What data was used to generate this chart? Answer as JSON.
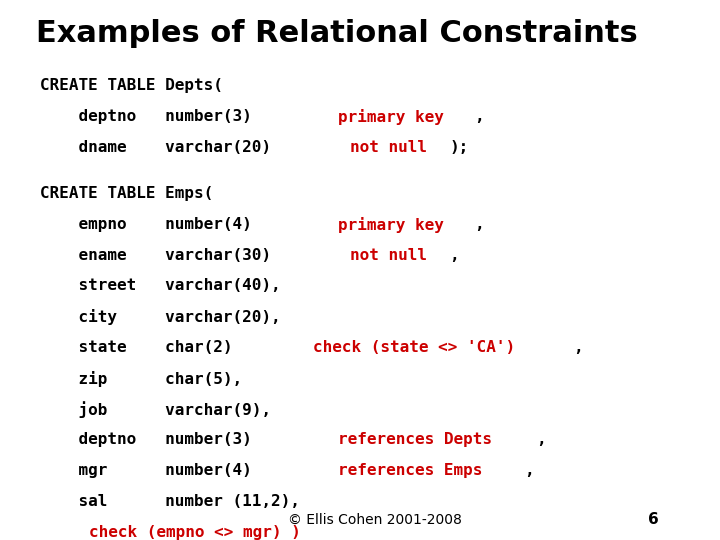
{
  "title": "Examples of Relational Constraints",
  "bg_color": "#ffffff",
  "title_color": "#000000",
  "title_fontsize": 22,
  "footer_text": "© Ellis Cohen 2001-2008",
  "footer_page": "6",
  "code_fontsize": 11.5,
  "lines": [
    [
      {
        "text": "CREATE TABLE Depts(",
        "color": "#000000"
      }
    ],
    [
      {
        "text": "    deptno   number(3)  ",
        "color": "#000000"
      },
      {
        "text": "primary key",
        "color": "#cc0000"
      },
      {
        "text": ",",
        "color": "#000000"
      }
    ],
    [
      {
        "text": "    dname    varchar(20) ",
        "color": "#000000"
      },
      {
        "text": "not null",
        "color": "#cc0000"
      },
      {
        "text": ");",
        "color": "#000000"
      }
    ],
    null,
    [
      {
        "text": "CREATE TABLE Emps(",
        "color": "#000000"
      }
    ],
    [
      {
        "text": "    empno    number(4)  ",
        "color": "#000000"
      },
      {
        "text": "primary key",
        "color": "#cc0000"
      },
      {
        "text": ",",
        "color": "#000000"
      }
    ],
    [
      {
        "text": "    ename    varchar(30) ",
        "color": "#000000"
      },
      {
        "text": "not null",
        "color": "#cc0000"
      },
      {
        "text": ",",
        "color": "#000000"
      }
    ],
    [
      {
        "text": "    street   varchar(40),",
        "color": "#000000"
      }
    ],
    [
      {
        "text": "    city     varchar(20),",
        "color": "#000000"
      }
    ],
    [
      {
        "text": "    state    char(2)  ",
        "color": "#000000"
      },
      {
        "text": "check (state <> 'CA')",
        "color": "#cc0000"
      },
      {
        "text": ",",
        "color": "#000000"
      }
    ],
    [
      {
        "text": "    zip      char(5),",
        "color": "#000000"
      }
    ],
    [
      {
        "text": "    job      varchar(9),",
        "color": "#000000"
      }
    ],
    [
      {
        "text": "    deptno   number(3)  ",
        "color": "#000000"
      },
      {
        "text": "references Depts",
        "color": "#cc0000"
      },
      {
        "text": ",",
        "color": "#000000"
      }
    ],
    [
      {
        "text": "    mgr      number(4)  ",
        "color": "#000000"
      },
      {
        "text": "references Emps",
        "color": "#cc0000"
      },
      {
        "text": ",",
        "color": "#000000"
      }
    ],
    [
      {
        "text": "    sal      number (11,2),",
        "color": "#000000"
      }
    ],
    [
      {
        "text": "    ",
        "color": "#000000"
      },
      {
        "text": "check (empno <> mgr) )",
        "color": "#cc0000"
      }
    ]
  ]
}
